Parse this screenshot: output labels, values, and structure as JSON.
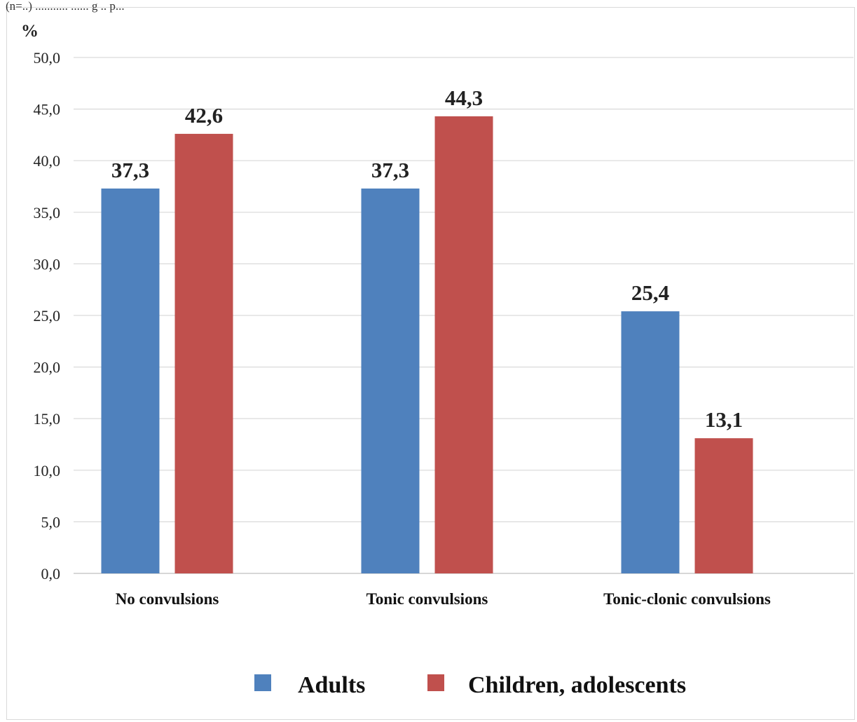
{
  "caption_fragment": "(n=..) ........... ...... g .. p...",
  "chart_data": {
    "type": "bar",
    "title": "",
    "xlabel": "",
    "ylabel": "%",
    "ylim": [
      0,
      50
    ],
    "ytick_step": 5,
    "ytick_labels": [
      "0,0",
      "5,0",
      "10,0",
      "15,0",
      "20,0",
      "25,0",
      "30,0",
      "35,0",
      "40,0",
      "45,0",
      "50,0"
    ],
    "grid": true,
    "legend_position": "bottom",
    "categories": [
      "No  convulsions",
      "Tonic convulsions",
      "Tonic-clonic convulsions"
    ],
    "series": [
      {
        "name": "Adults",
        "color": "#4f81bd",
        "values": [
          37.3,
          37.3,
          25.4
        ],
        "labels": [
          "37,3",
          "37,3",
          "25,4"
        ]
      },
      {
        "name": "Children, adolescents",
        "color": "#c0504d",
        "values": [
          42.6,
          44.3,
          13.1
        ],
        "labels": [
          "42,6",
          "44,3",
          "13,1"
        ]
      }
    ]
  },
  "colors": {
    "grid": "#d9d9d9",
    "frame": "#d9d9d9",
    "axis": "#bfbfbf"
  }
}
